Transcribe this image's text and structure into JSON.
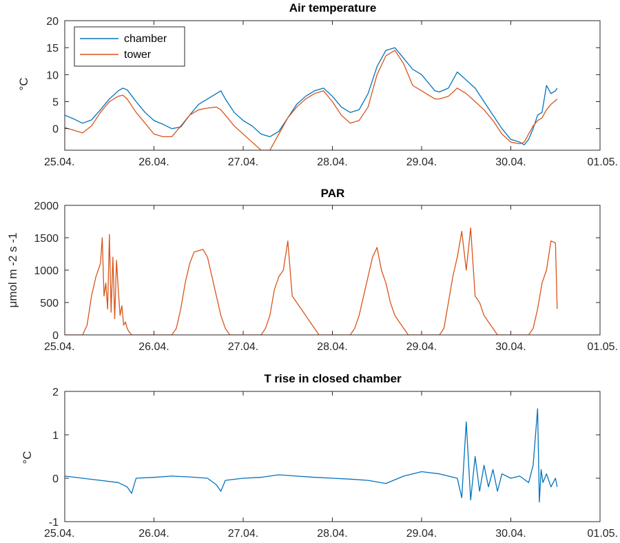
{
  "chart_data": [
    {
      "type": "line",
      "title": "Air temperature",
      "xlabel": "",
      "ylabel": "°C",
      "xlim": [
        "25.04.",
        "01.05."
      ],
      "ylim": [
        -4,
        20
      ],
      "x_ticks": [
        "25.04.",
        "26.04.",
        "27.04.",
        "28.04.",
        "29.04.",
        "30.04.",
        "01.05."
      ],
      "y_ticks": [
        0,
        5,
        10,
        15,
        20
      ],
      "legend": "top-left",
      "series": [
        {
          "name": "chamber",
          "color": "#0072BD",
          "x": [
            0.0,
            0.1,
            0.2,
            0.3,
            0.4,
            0.5,
            0.6,
            0.65,
            0.7,
            0.8,
            0.9,
            1.0,
            1.1,
            1.2,
            1.3,
            1.4,
            1.5,
            1.6,
            1.7,
            1.75,
            1.8,
            1.9,
            2.0,
            2.1,
            2.2,
            2.3,
            2.4,
            2.5,
            2.6,
            2.7,
            2.8,
            2.9,
            3.0,
            3.1,
            3.2,
            3.3,
            3.4,
            3.5,
            3.6,
            3.7,
            3.8,
            3.9,
            4.0,
            4.1,
            4.15,
            4.2,
            4.3,
            4.4,
            4.5,
            4.6,
            4.7,
            4.8,
            4.9,
            5.0,
            5.1,
            5.15,
            5.2,
            5.25,
            5.3,
            5.35,
            5.4,
            5.45,
            5.5,
            5.52
          ],
          "values": [
            2.5,
            1.8,
            1.0,
            1.6,
            3.5,
            5.5,
            7.0,
            7.5,
            7.2,
            5.0,
            3.0,
            1.5,
            0.8,
            0.0,
            0.3,
            2.5,
            4.5,
            5.5,
            6.5,
            7.0,
            5.5,
            3.0,
            1.5,
            0.5,
            -1.0,
            -1.5,
            -0.5,
            2.0,
            4.5,
            6.0,
            7.0,
            7.5,
            6.0,
            4.0,
            3.0,
            3.5,
            6.5,
            11.5,
            14.5,
            15.0,
            13.0,
            11.0,
            10.0,
            8.0,
            7.0,
            6.8,
            7.5,
            10.5,
            9.0,
            7.5,
            5.0,
            2.5,
            0.0,
            -2.0,
            -2.5,
            -3.0,
            -2.0,
            0.0,
            2.5,
            3.0,
            8.0,
            6.5,
            7.0,
            7.5
          ]
        },
        {
          "name": "tower",
          "color": "#D95319",
          "x": [
            0.0,
            0.1,
            0.2,
            0.3,
            0.4,
            0.5,
            0.6,
            0.65,
            0.7,
            0.8,
            0.9,
            1.0,
            1.1,
            1.2,
            1.3,
            1.4,
            1.5,
            1.6,
            1.7,
            1.75,
            1.8,
            1.9,
            2.0,
            2.1,
            2.2,
            2.3,
            2.4,
            2.5,
            2.6,
            2.7,
            2.8,
            2.9,
            3.0,
            3.1,
            3.2,
            3.3,
            3.4,
            3.5,
            3.6,
            3.7,
            3.8,
            3.9,
            4.0,
            4.1,
            4.15,
            4.2,
            4.3,
            4.4,
            4.5,
            4.6,
            4.7,
            4.8,
            4.9,
            5.0,
            5.1,
            5.15,
            5.2,
            5.25,
            5.3,
            5.35,
            5.4,
            5.45,
            5.5,
            5.52
          ],
          "values": [
            0.2,
            -0.3,
            -0.8,
            0.5,
            3.0,
            5.0,
            6.0,
            6.2,
            5.5,
            3.0,
            1.0,
            -1.0,
            -1.5,
            -1.5,
            0.5,
            2.5,
            3.5,
            3.8,
            4.0,
            3.5,
            2.5,
            0.5,
            -1.0,
            -2.5,
            -4.0,
            -4.0,
            -1.0,
            2.0,
            4.0,
            5.5,
            6.5,
            7.0,
            5.0,
            2.5,
            1.0,
            1.5,
            4.0,
            10.0,
            13.5,
            14.5,
            12.0,
            8.0,
            7.0,
            6.0,
            5.5,
            5.5,
            6.0,
            7.5,
            6.5,
            5.0,
            3.5,
            1.5,
            -1.0,
            -2.5,
            -2.8,
            -2.5,
            -1.0,
            0.5,
            1.5,
            2.0,
            3.5,
            4.5,
            5.2,
            5.5
          ]
        }
      ]
    },
    {
      "type": "line",
      "title": "PAR",
      "xlabel": "",
      "ylabel": "μmol m -2 s -1",
      "xlim": [
        "25.04.",
        "01.05."
      ],
      "ylim": [
        0,
        2000
      ],
      "x_ticks": [
        "25.04.",
        "26.04.",
        "27.04.",
        "28.04.",
        "29.04.",
        "30.04.",
        "01.05."
      ],
      "y_ticks": [
        0,
        500,
        1000,
        1500,
        2000
      ],
      "series": [
        {
          "color": "#D95319",
          "x": [
            0.0,
            0.2,
            0.25,
            0.3,
            0.35,
            0.4,
            0.42,
            0.44,
            0.46,
            0.48,
            0.5,
            0.52,
            0.54,
            0.56,
            0.58,
            0.6,
            0.62,
            0.64,
            0.66,
            0.68,
            0.7,
            0.72,
            0.75,
            0.8,
            1.2,
            1.25,
            1.3,
            1.35,
            1.4,
            1.45,
            1.5,
            1.55,
            1.6,
            1.65,
            1.7,
            1.75,
            1.8,
            1.85,
            2.2,
            2.25,
            2.3,
            2.35,
            2.4,
            2.45,
            2.5,
            2.55,
            2.6,
            2.65,
            2.7,
            2.75,
            2.8,
            2.85,
            3.2,
            3.25,
            3.3,
            3.35,
            3.4,
            3.45,
            3.5,
            3.55,
            3.6,
            3.65,
            3.7,
            3.75,
            3.8,
            3.85,
            4.2,
            4.25,
            4.3,
            4.35,
            4.4,
            4.45,
            4.5,
            4.55,
            4.6,
            4.65,
            4.7,
            4.75,
            4.8,
            4.85,
            5.2,
            5.25,
            5.3,
            5.35,
            5.4,
            5.45,
            5.5,
            5.52
          ],
          "values": [
            0,
            0,
            150,
            600,
            900,
            1100,
            1500,
            600,
            800,
            400,
            1550,
            350,
            1200,
            250,
            1150,
            700,
            300,
            450,
            150,
            200,
            100,
            50,
            0,
            0,
            0,
            100,
            400,
            800,
            1100,
            1280,
            1300,
            1320,
            1200,
            900,
            600,
            300,
            100,
            0,
            0,
            100,
            300,
            700,
            900,
            1000,
            1450,
            600,
            500,
            400,
            300,
            200,
            100,
            0,
            0,
            100,
            300,
            600,
            900,
            1200,
            1350,
            1000,
            800,
            500,
            300,
            200,
            100,
            0,
            0,
            100,
            500,
            900,
            1200,
            1600,
            1000,
            1650,
            600,
            500,
            300,
            200,
            100,
            0,
            0,
            100,
            400,
            800,
            1000,
            1450,
            1420,
            400
          ]
        }
      ]
    },
    {
      "type": "line",
      "title": "T rise in closed chamber",
      "xlabel": "",
      "ylabel": "°C",
      "xlim": [
        "25.04.",
        "01.05."
      ],
      "ylim": [
        -1,
        2
      ],
      "x_ticks": [
        "25.04.",
        "26.04.",
        "27.04.",
        "28.04.",
        "29.04.",
        "30.04.",
        "01.05."
      ],
      "y_ticks": [
        -1,
        0,
        1,
        2
      ],
      "series": [
        {
          "color": "#0072BD",
          "x": [
            0.0,
            0.2,
            0.4,
            0.6,
            0.7,
            0.75,
            0.8,
            1.0,
            1.2,
            1.4,
            1.6,
            1.7,
            1.75,
            1.8,
            2.0,
            2.2,
            2.4,
            2.6,
            2.8,
            3.0,
            3.2,
            3.4,
            3.6,
            3.8,
            4.0,
            4.2,
            4.4,
            4.45,
            4.5,
            4.55,
            4.6,
            4.65,
            4.7,
            4.75,
            4.8,
            4.85,
            4.9,
            5.0,
            5.1,
            5.2,
            5.25,
            5.3,
            5.32,
            5.34,
            5.36,
            5.4,
            5.45,
            5.5,
            5.52
          ],
          "values": [
            0.05,
            0.0,
            -0.05,
            -0.1,
            -0.2,
            -0.35,
            0.0,
            0.02,
            0.05,
            0.03,
            0.0,
            -0.15,
            -0.3,
            -0.05,
            0.0,
            0.02,
            0.08,
            0.05,
            0.02,
            0.0,
            -0.02,
            -0.05,
            -0.12,
            0.05,
            0.15,
            0.1,
            0.0,
            -0.45,
            1.3,
            -0.5,
            0.5,
            -0.3,
            0.3,
            -0.2,
            0.2,
            -0.3,
            0.1,
            0.0,
            0.05,
            -0.1,
            0.3,
            1.6,
            -0.55,
            0.2,
            -0.1,
            0.1,
            -0.2,
            0.0,
            -0.2
          ]
        }
      ]
    }
  ]
}
